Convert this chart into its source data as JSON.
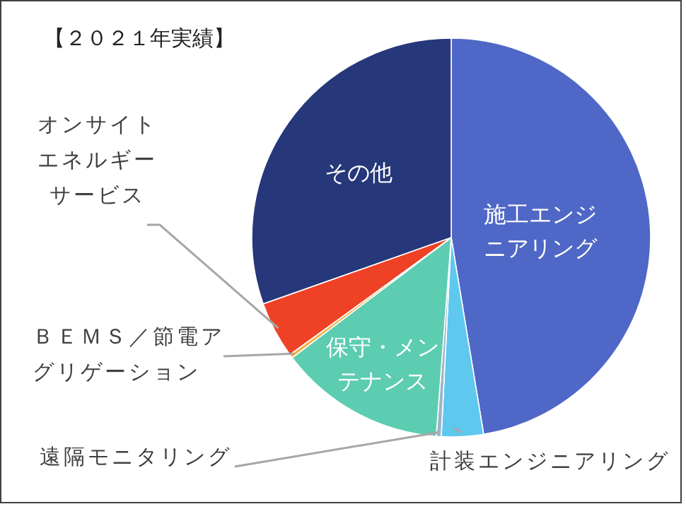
{
  "chart_data": {
    "type": "pie",
    "title": "【２０２１年実績】",
    "categories": [
      "施工エンジニアリング",
      "計装エンジニアリング",
      "遠隔モニタリング",
      "保守・メンテナンス",
      "ＢＥＭＳ／節電アグリゲーション",
      "オンサイトエネルギーサービス",
      "その他"
    ],
    "values": [
      47.4,
      3.4,
      0.4,
      13.5,
      0.3,
      4.6,
      30.4
    ],
    "colors": [
      "#4f67c6",
      "#5ec8ef",
      "#9fb3c8",
      "#5ccdb0",
      "#f5b042",
      "#ee4125",
      "#26377a"
    ]
  }
}
